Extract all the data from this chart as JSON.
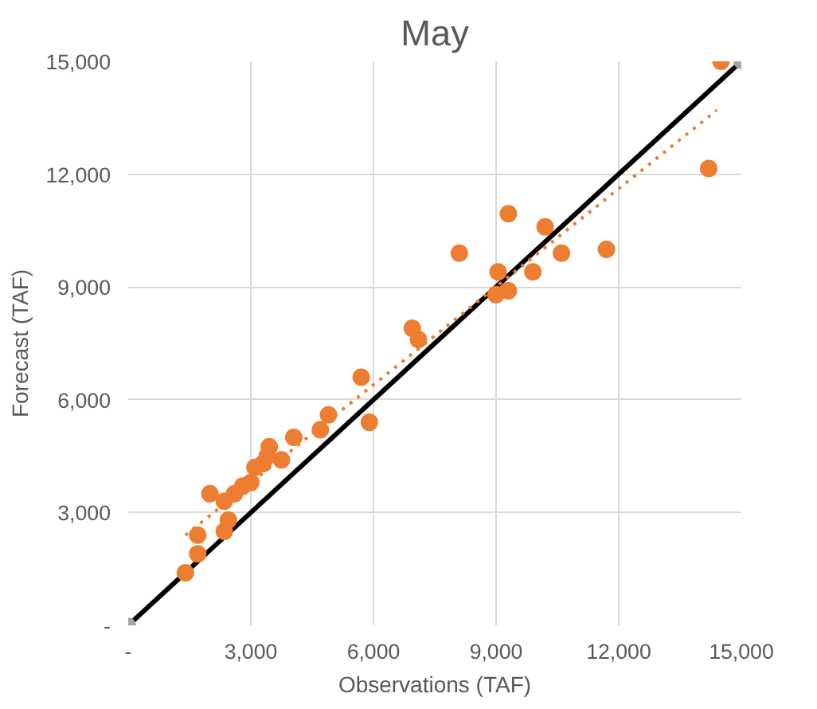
{
  "chart_data": {
    "type": "scatter",
    "title": "May",
    "xlabel": "Observations (TAF)",
    "ylabel": "Forecast (TAF)",
    "xlim": [
      0,
      15000
    ],
    "ylim": [
      0,
      15000
    ],
    "xticks": [
      {
        "value": 0,
        "label": "-"
      },
      {
        "value": 3000,
        "label": "3,000"
      },
      {
        "value": 6000,
        "label": "6,000"
      },
      {
        "value": 9000,
        "label": "9,000"
      },
      {
        "value": 12000,
        "label": "12,000"
      },
      {
        "value": 15000,
        "label": "15,000"
      }
    ],
    "yticks": [
      {
        "value": 0,
        "label": "-"
      },
      {
        "value": 3000,
        "label": "3,000"
      },
      {
        "value": 6000,
        "label": "6,000"
      },
      {
        "value": 9000,
        "label": "9,000"
      },
      {
        "value": 12000,
        "label": "12,000"
      },
      {
        "value": 15000,
        "label": "15,000"
      }
    ],
    "grid": true,
    "series": [
      {
        "type": "line",
        "color": "#000000",
        "marker": "circle",
        "line_style": "solid",
        "x": [
          0,
          15000
        ],
        "values": [
          0,
          15000
        ]
      },
      {
        "type": "line",
        "color": "#ed7d31",
        "marker": "none",
        "line_style": "dotted",
        "x": [
          1400,
          14400
        ],
        "values": [
          2400,
          13700
        ]
      },
      {
        "color": "#ed7d31",
        "marker": "circle",
        "x": [
          1400,
          1700,
          1700,
          2000,
          2350,
          2450,
          2350,
          2600,
          2800,
          3000,
          3100,
          3300,
          3450,
          3400,
          3750,
          4050,
          4700,
          4900,
          5700,
          5900,
          6950,
          7100,
          8100,
          9050,
          9000,
          9300,
          9300,
          9900,
          10200,
          10600,
          11700,
          14200,
          14500
        ],
        "values": [
          1400,
          1900,
          2400,
          3500,
          2500,
          2800,
          3300,
          3500,
          3700,
          3800,
          4200,
          4300,
          4750,
          4500,
          4400,
          5000,
          5200,
          5600,
          6600,
          5400,
          7900,
          7600,
          9900,
          9400,
          8800,
          8900,
          10950,
          9400,
          10600,
          9900,
          10000,
          12150,
          15000
        ]
      }
    ]
  }
}
